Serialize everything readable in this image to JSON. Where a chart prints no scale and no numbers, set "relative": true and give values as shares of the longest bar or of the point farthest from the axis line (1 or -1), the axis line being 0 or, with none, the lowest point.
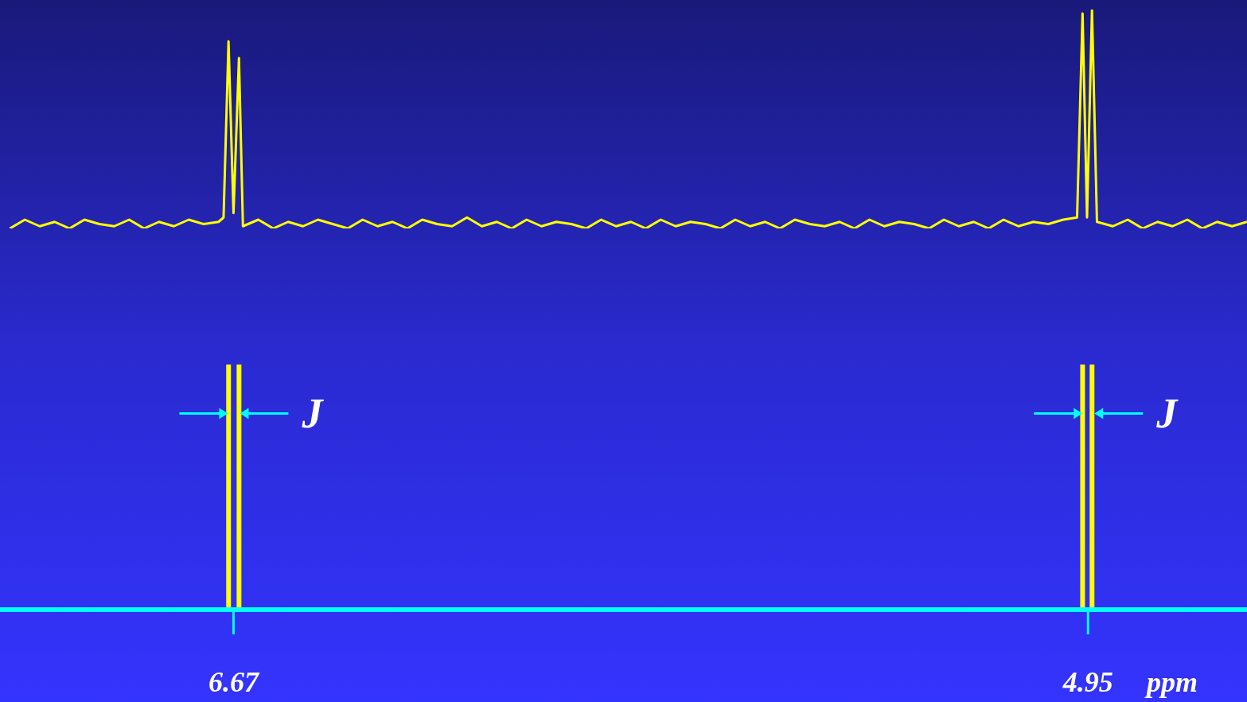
{
  "chart_data": [
    {
      "type": "line",
      "relative": true,
      "color": "#ffff00",
      "xlim": [
        7.14,
        4.63
      ],
      "tick_labels": false,
      "x": [
        7.12,
        7.09,
        7.06,
        7.03,
        7.0,
        6.97,
        6.94,
        6.91,
        6.88,
        6.85,
        6.82,
        6.79,
        6.76,
        6.73,
        6.7,
        6.69,
        6.68,
        6.67,
        6.659,
        6.651,
        6.62,
        6.59,
        6.56,
        6.53,
        6.5,
        6.47,
        6.44,
        6.41,
        6.38,
        6.35,
        6.32,
        6.29,
        6.26,
        6.23,
        6.2,
        6.17,
        6.14,
        6.11,
        6.08,
        6.05,
        6.02,
        5.99,
        5.96,
        5.93,
        5.9,
        5.87,
        5.84,
        5.81,
        5.78,
        5.75,
        5.72,
        5.69,
        5.66,
        5.63,
        5.6,
        5.57,
        5.54,
        5.51,
        5.48,
        5.45,
        5.42,
        5.39,
        5.36,
        5.33,
        5.3,
        5.27,
        5.24,
        5.21,
        5.18,
        5.15,
        5.12,
        5.09,
        5.06,
        5.03,
        5.0,
        4.972,
        4.961,
        4.952,
        4.942,
        4.932,
        4.9,
        4.87,
        4.84,
        4.81,
        4.78,
        4.75,
        4.72,
        4.69,
        4.66,
        4.63
      ],
      "values": [
        0,
        0.04,
        0.01,
        0.03,
        0,
        0.04,
        0.02,
        0.01,
        0.04,
        0,
        0.03,
        0.01,
        0.04,
        0.02,
        0.03,
        0.05,
        0.855,
        0.07,
        0.778,
        0.01,
        0.04,
        0,
        0.03,
        0.01,
        0.04,
        0.02,
        0,
        0.04,
        0.01,
        0.03,
        0,
        0.04,
        0.02,
        0.01,
        0.05,
        0.01,
        0.03,
        0,
        0.04,
        0.01,
        0.03,
        0.02,
        0,
        0.04,
        0.01,
        0.03,
        0,
        0.04,
        0.01,
        0.03,
        0.02,
        0,
        0.04,
        0.01,
        0.03,
        0,
        0.04,
        0.02,
        0.01,
        0.03,
        0,
        0.04,
        0.01,
        0.03,
        0.02,
        0,
        0.04,
        0.01,
        0.03,
        0,
        0.04,
        0.01,
        0.03,
        0.02,
        0.04,
        0.05,
        0.982,
        0.05,
        1.0,
        0.03,
        0.01,
        0.04,
        0,
        0.03,
        0.01,
        0.04,
        0,
        0.03,
        0.01,
        0.03
      ]
    },
    {
      "type": "bar",
      "relative": true,
      "color": "#ffff00",
      "x": [
        6.68,
        6.659,
        4.961,
        4.942
      ],
      "values": [
        1,
        1,
        1,
        1
      ],
      "xlim": [
        7.14,
        4.63
      ],
      "xticks": [
        6.67,
        4.95
      ],
      "xlabel": "ppm",
      "annotations": [
        {
          "text": "J",
          "x": 6.67,
          "y": 0.8
        },
        {
          "text": "J",
          "x": 4.95,
          "y": 0.8
        }
      ]
    }
  ]
}
